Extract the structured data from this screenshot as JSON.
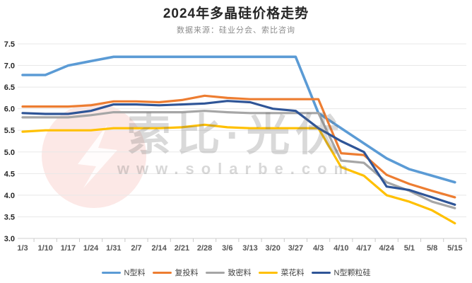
{
  "header": {
    "title": "2024年多晶硅价格走势",
    "subtitle": "数据来源：硅业分会、索比咨询"
  },
  "watermark": {
    "brand_text": "索比·光伏",
    "url_text": "www.solarbe.com",
    "logo": "solarbe-lightning-bolt-icon",
    "circle_color": "#E8503C"
  },
  "chart_data": {
    "type": "line",
    "title": "2024年多晶硅价格走势",
    "xlabel": "",
    "ylabel": "",
    "ylim": [
      3.0,
      7.5
    ],
    "y_tick_step": 0.5,
    "y_tick_labels": [
      "7.5",
      "7.0",
      "6.5",
      "6.0",
      "5.5",
      "5.0",
      "4.5",
      "4.0",
      "3.5",
      "3.0"
    ],
    "grid": true,
    "legend_position": "bottom",
    "categories": [
      "1/3",
      "1/10",
      "1/17",
      "1/24",
      "1/31",
      "2/7",
      "2/14",
      "2/21",
      "2/28",
      "3/6",
      "3/13",
      "3/20",
      "3/27",
      "4/3",
      "4/10",
      "4/17",
      "4/24",
      "5/1",
      "5/8",
      "5/15"
    ],
    "series": [
      {
        "name": "N型料",
        "color": "#5B9BD5",
        "width": 3.6,
        "values": [
          6.78,
          6.78,
          7.0,
          7.1,
          7.2,
          7.2,
          7.2,
          7.2,
          7.2,
          7.2,
          7.2,
          7.2,
          7.2,
          5.9,
          5.55,
          5.2,
          4.85,
          4.6,
          4.45,
          4.3
        ]
      },
      {
        "name": "复投料",
        "color": "#ED7D31",
        "width": 3.2,
        "values": [
          6.05,
          6.05,
          6.05,
          6.08,
          6.17,
          6.17,
          6.15,
          6.2,
          6.3,
          6.25,
          6.22,
          6.22,
          6.22,
          6.22,
          4.97,
          4.93,
          4.47,
          4.26,
          4.1,
          3.95
        ]
      },
      {
        "name": "致密料",
        "color": "#A6A6A6",
        "width": 3.2,
        "values": [
          5.8,
          5.8,
          5.8,
          5.85,
          5.92,
          5.92,
          5.92,
          5.92,
          5.95,
          5.92,
          5.9,
          5.9,
          5.9,
          5.9,
          4.8,
          4.75,
          4.3,
          4.1,
          3.85,
          3.7
        ]
      },
      {
        "name": "菜花料",
        "color": "#FFC000",
        "width": 3.2,
        "values": [
          5.47,
          5.5,
          5.5,
          5.5,
          5.55,
          5.55,
          5.55,
          5.57,
          5.63,
          5.57,
          5.55,
          5.55,
          5.55,
          5.55,
          4.65,
          4.45,
          4.0,
          3.85,
          3.65,
          3.35
        ]
      },
      {
        "name": "N型颗粒硅",
        "color": "#2F5597",
        "width": 3.2,
        "values": [
          5.9,
          5.88,
          5.88,
          5.95,
          6.1,
          6.1,
          6.08,
          6.1,
          6.12,
          6.18,
          6.15,
          6.0,
          5.95,
          5.55,
          5.25,
          5.0,
          4.2,
          4.12,
          3.95,
          3.78
        ]
      }
    ]
  }
}
